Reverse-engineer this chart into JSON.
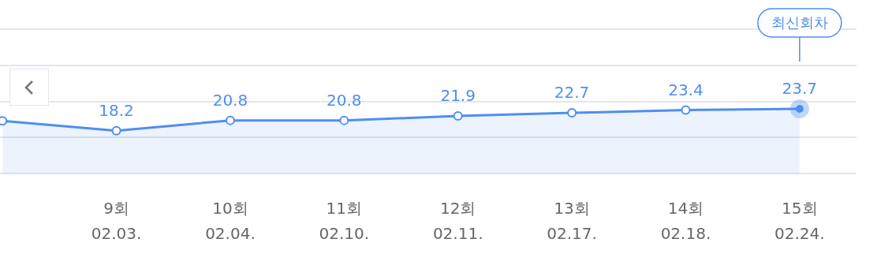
{
  "chart_data": {
    "type": "area",
    "categories": [
      null,
      "9회\n02.03.",
      "10회\n02.04.",
      "11회\n02.10.",
      "12회\n02.11.",
      "13회\n02.17.",
      "14회\n02.18.",
      "15회\n02.24."
    ],
    "series": [
      {
        "color": "#4f8ef0",
        "values": [
          20.7,
          18.2,
          20.8,
          20.8,
          21.9,
          22.7,
          23.4,
          23.7
        ],
        "value_labels": [
          null,
          "18.2",
          "20.8",
          "20.8",
          "21.9",
          "22.7",
          "23.4",
          "23.7"
        ]
      }
    ],
    "ylim": [
      7.4,
      43.8
    ],
    "yticks": [
      {
        "value": 7.4,
        "label": null
      },
      {
        "value": 16.5,
        "label": null
      },
      {
        "value": 25.6,
        "label": null
      },
      {
        "value": 34.7,
        "label": null
      },
      {
        "value": 43.8,
        "label": null
      }
    ],
    "grid": "y",
    "legend": false,
    "marker": "circle",
    "tick_labels": "x",
    "annotations": [
      "최신회차"
    ]
  }
}
